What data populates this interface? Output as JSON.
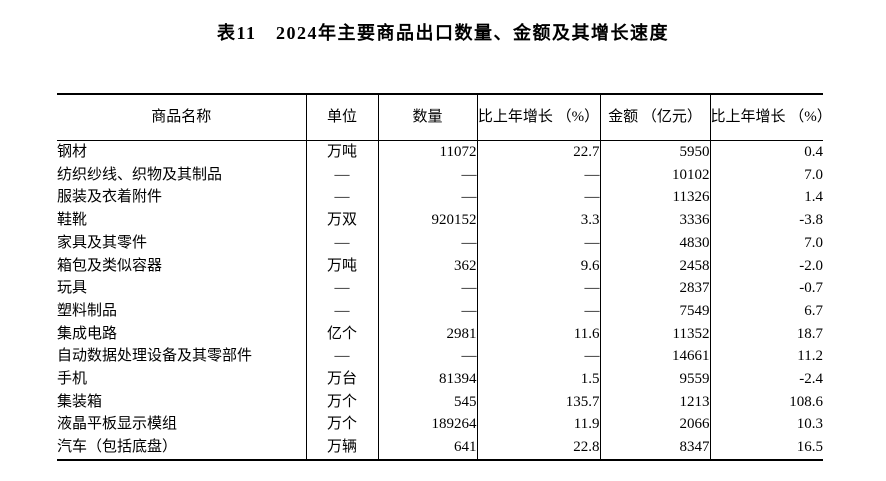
{
  "page": {
    "background_color": "#ffffff",
    "text_color": "#000000",
    "border_color": "#000000"
  },
  "title": "表11　2024年主要商品出口数量、金额及其增长速度",
  "chart_data": {
    "type": "table",
    "title": "表11　2024年主要商品出口数量、金额及其增长速度",
    "columns": [
      "商品名称",
      "单位",
      "数量",
      "比上年增长\n（%）",
      "金额\n（亿元）",
      "比上年增长\n（%）"
    ],
    "empty_value_symbol": "—",
    "rows": [
      [
        "钢材",
        "万吨",
        "11072",
        "22.7",
        "5950",
        "0.4"
      ],
      [
        "纺织纱线、织物及其制品",
        "—",
        "—",
        "—",
        "10102",
        "7.0"
      ],
      [
        "服装及衣着附件",
        "—",
        "—",
        "—",
        "11326",
        "1.4"
      ],
      [
        "鞋靴",
        "万双",
        "920152",
        "3.3",
        "3336",
        "-3.8"
      ],
      [
        "家具及其零件",
        "—",
        "—",
        "—",
        "4830",
        "7.0"
      ],
      [
        "箱包及类似容器",
        "万吨",
        "362",
        "9.6",
        "2458",
        "-2.0"
      ],
      [
        "玩具",
        "—",
        "—",
        "—",
        "2837",
        "-0.7"
      ],
      [
        "塑料制品",
        "—",
        "—",
        "—",
        "7549",
        "6.7"
      ],
      [
        "集成电路",
        "亿个",
        "2981",
        "11.6",
        "11352",
        "18.7"
      ],
      [
        "自动数据处理设备及其零部件",
        "—",
        "—",
        "—",
        "14661",
        "11.2"
      ],
      [
        "手机",
        "万台",
        "81394",
        "1.5",
        "9559",
        "-2.4"
      ],
      [
        "集装箱",
        "万个",
        "545",
        "135.7",
        "1213",
        "108.6"
      ],
      [
        "液晶平板显示模组",
        "万个",
        "189264",
        "11.9",
        "2066",
        "10.3"
      ],
      [
        "汽车（包括底盘）",
        "万辆",
        "641",
        "22.8",
        "8347",
        "16.5"
      ]
    ]
  }
}
